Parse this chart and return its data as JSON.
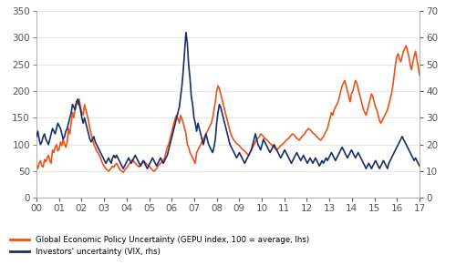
{
  "gepu": [
    62,
    55,
    65,
    70,
    60,
    58,
    72,
    68,
    75,
    80,
    70,
    65,
    90,
    85,
    95,
    100,
    88,
    92,
    105,
    98,
    110,
    100,
    95,
    105,
    130,
    120,
    140,
    160,
    150,
    170,
    180,
    175,
    185,
    170,
    160,
    155,
    175,
    165,
    155,
    145,
    130,
    120,
    110,
    100,
    95,
    88,
    85,
    80,
    75,
    68,
    62,
    58,
    55,
    52,
    50,
    53,
    56,
    60,
    58,
    62,
    65,
    60,
    55,
    52,
    50,
    48,
    52,
    55,
    58,
    62,
    65,
    68,
    72,
    68,
    65,
    62,
    60,
    58,
    62,
    65,
    70,
    68,
    65,
    62,
    60,
    58,
    55,
    52,
    50,
    52,
    55,
    60,
    62,
    65,
    68,
    70,
    75,
    85,
    95,
    100,
    110,
    120,
    130,
    140,
    150,
    155,
    148,
    140,
    155,
    148,
    140,
    130,
    120,
    100,
    95,
    85,
    80,
    75,
    70,
    65,
    85,
    90,
    95,
    100,
    105,
    110,
    115,
    120,
    125,
    130,
    135,
    140,
    150,
    165,
    180,
    200,
    210,
    205,
    195,
    185,
    175,
    165,
    155,
    145,
    135,
    125,
    118,
    112,
    108,
    105,
    102,
    100,
    98,
    95,
    92,
    90,
    88,
    85,
    82,
    80,
    85,
    90,
    95,
    100,
    105,
    110,
    112,
    115,
    120,
    118,
    115,
    112,
    110,
    108,
    105,
    102,
    100,
    98,
    95,
    92,
    90,
    92,
    95,
    98,
    100,
    102,
    105,
    108,
    110,
    112,
    115,
    118,
    120,
    118,
    115,
    112,
    110,
    108,
    112,
    115,
    118,
    120,
    125,
    128,
    130,
    128,
    125,
    122,
    120,
    118,
    115,
    112,
    110,
    108,
    112,
    115,
    120,
    125,
    130,
    140,
    150,
    160,
    155,
    165,
    170,
    175,
    180,
    190,
    200,
    210,
    215,
    220,
    210,
    200,
    190,
    180,
    195,
    200,
    210,
    220,
    215,
    205,
    195,
    185,
    175,
    165,
    160,
    155,
    165,
    175,
    185,
    195,
    190,
    180,
    170,
    165,
    155,
    145,
    140,
    145,
    150,
    155,
    160,
    165,
    175,
    185,
    195,
    210,
    230,
    250,
    265,
    270,
    260,
    255,
    265,
    275,
    280,
    285,
    275,
    265,
    250,
    240,
    255,
    265,
    275,
    260,
    245,
    230
  ],
  "vix": [
    23,
    25,
    22,
    20,
    21,
    23,
    24,
    22,
    21,
    20,
    22,
    24,
    26,
    25,
    24,
    26,
    28,
    27,
    26,
    24,
    22,
    23,
    25,
    26,
    28,
    30,
    32,
    35,
    34,
    33,
    36,
    37,
    35,
    33,
    30,
    28,
    30,
    28,
    26,
    24,
    22,
    21,
    22,
    23,
    21,
    20,
    19,
    18,
    17,
    16,
    15,
    14,
    13,
    14,
    15,
    14,
    13,
    15,
    16,
    15,
    16,
    15,
    14,
    13,
    12,
    11,
    12,
    13,
    14,
    15,
    14,
    13,
    14,
    15,
    16,
    15,
    14,
    13,
    12,
    13,
    14,
    13,
    12,
    11,
    12,
    13,
    14,
    15,
    14,
    13,
    12,
    13,
    14,
    15,
    14,
    13,
    14,
    15,
    16,
    18,
    20,
    22,
    24,
    26,
    28,
    30,
    32,
    34,
    38,
    42,
    48,
    55,
    62,
    58,
    50,
    45,
    38,
    35,
    30,
    28,
    25,
    28,
    26,
    24,
    22,
    20,
    22,
    24,
    22,
    20,
    19,
    18,
    17,
    19,
    22,
    28,
    32,
    35,
    34,
    32,
    30,
    28,
    26,
    24,
    22,
    20,
    19,
    18,
    17,
    16,
    15,
    16,
    17,
    16,
    15,
    14,
    13,
    14,
    15,
    16,
    17,
    18,
    20,
    22,
    24,
    22,
    20,
    19,
    18,
    20,
    22,
    21,
    20,
    19,
    18,
    17,
    18,
    19,
    20,
    19,
    18,
    17,
    16,
    15,
    16,
    17,
    18,
    17,
    16,
    15,
    14,
    13,
    14,
    15,
    16,
    17,
    16,
    15,
    14,
    15,
    16,
    15,
    14,
    13,
    14,
    15,
    14,
    13,
    14,
    15,
    14,
    13,
    12,
    13,
    14,
    13,
    14,
    15,
    14,
    15,
    16,
    17,
    16,
    15,
    14,
    15,
    16,
    17,
    18,
    19,
    18,
    17,
    16,
    15,
    16,
    17,
    18,
    17,
    16,
    15,
    16,
    17,
    16,
    15,
    14,
    13,
    12,
    11,
    12,
    13,
    12,
    11,
    12,
    13,
    14,
    13,
    12,
    11,
    12,
    13,
    14,
    13,
    12,
    11,
    13,
    14,
    15,
    16,
    17,
    18,
    19,
    20,
    21,
    22,
    23,
    22,
    21,
    20,
    19,
    18,
    17,
    16,
    15,
    14,
    15,
    14,
    13,
    12
  ],
  "x_start_year": 2000,
  "x_end_year": 2017,
  "gepu_color": "#E8541A",
  "vix_color": "#1A2D6B",
  "lhs_yticks": [
    0,
    50,
    100,
    150,
    200,
    250,
    300,
    350
  ],
  "rhs_yticks": [
    0,
    10,
    20,
    30,
    40,
    50,
    60,
    70
  ],
  "lhs_ylim": [
    0,
    350
  ],
  "rhs_ylim": [
    0,
    70
  ],
  "xtick_labels": [
    "00",
    "01",
    "02",
    "03",
    "04",
    "05",
    "06",
    "07",
    "08",
    "09",
    "10",
    "11",
    "12",
    "13",
    "14",
    "15",
    "16",
    "17"
  ],
  "legend1": "Global Economic Policy Uncertainty (GEPU index, 100 = average, lhs)",
  "legend2": "Investors' uncertainty (VIX, rhs)",
  "line_width": 1.2,
  "bg_color": "#ffffff",
  "grid_color": "#dddddd",
  "tick_color": "#555555"
}
